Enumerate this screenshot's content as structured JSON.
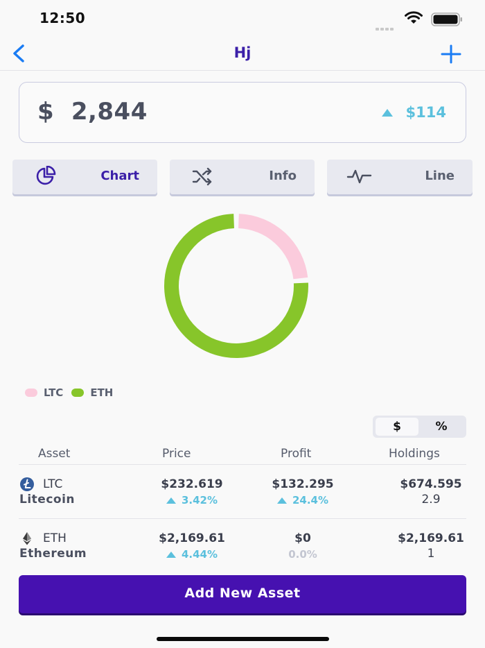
{
  "status": {
    "time": "12:50"
  },
  "nav": {
    "title": "Hj"
  },
  "portfolio": {
    "total": "$  2,844",
    "change": "$114"
  },
  "tabs": [
    {
      "label": "Chart",
      "icon": "pie-chart-icon",
      "active": true
    },
    {
      "label": "Info",
      "icon": "shuffle-icon",
      "active": false
    },
    {
      "label": "Line",
      "icon": "activity-line-icon",
      "active": false
    }
  ],
  "chart_data": {
    "type": "pie",
    "categories": [
      "LTC",
      "ETH"
    ],
    "values": [
      674.595,
      2169.61
    ],
    "colors": [
      "#fbcbdc",
      "#87c52a"
    ],
    "legend_position": "bottom-left"
  },
  "legend": [
    {
      "label": "LTC",
      "color": "#fbcbdc"
    },
    {
      "label": "ETH",
      "color": "#87c52a"
    }
  ],
  "unit_toggle": {
    "dollar": "$",
    "percent": "%",
    "selected": "$"
  },
  "table": {
    "headers": [
      "Asset",
      "Price",
      "Profit",
      "Holdings"
    ],
    "rows": [
      {
        "symbol": "LTC",
        "name": "Litecoin",
        "icon": "litecoin-icon",
        "price": "$232.619",
        "price_change": "3.42%",
        "profit": "$132.295",
        "profit_change": "24.4%",
        "holdings_value": "$674.595",
        "holdings_qty": "2.9"
      },
      {
        "symbol": "ETH",
        "name": "Ethereum",
        "icon": "ethereum-icon",
        "price": "$2,169.61",
        "price_change": "4.44%",
        "profit": "$0",
        "profit_change": "0.0%",
        "holdings_value": "$2,169.61",
        "holdings_qty": "1"
      }
    ]
  },
  "actions": {
    "add_asset": "Add New Asset"
  },
  "colors": {
    "accent": "#3b1fa8",
    "button": "#4611b0",
    "positive": "#5bc0dd",
    "ios_blue": "#1a7cf4"
  }
}
